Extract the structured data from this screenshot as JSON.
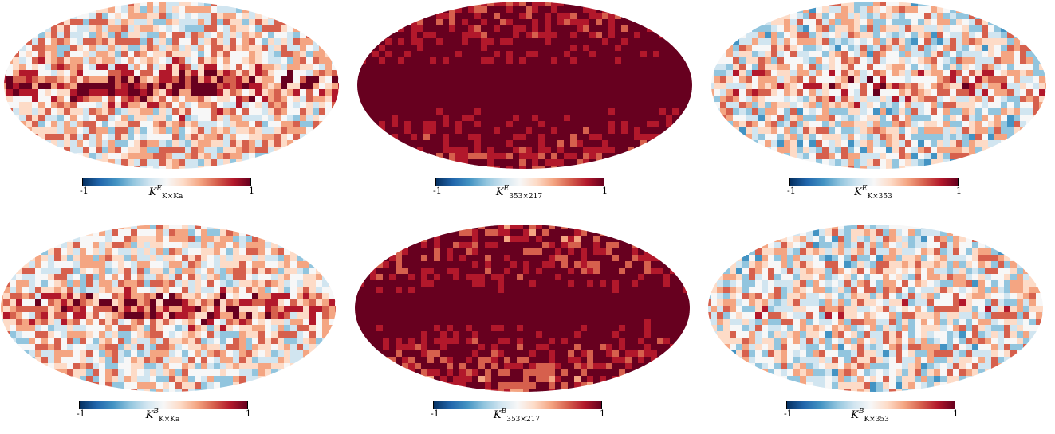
{
  "colormap": [
    "#053061",
    "#2166ac",
    "#4393c3",
    "#92c5de",
    "#d1e5f0",
    "#f7f7f7",
    "#fddbc7",
    "#f4a582",
    "#d6604d",
    "#b2182b",
    "#67001f"
  ],
  "panels": [
    {
      "id": "ke-kxka",
      "symbol": "K",
      "sup": "E",
      "sub": "K×Ka",
      "vmin": "-1",
      "vmax": "1",
      "mean": 0.15,
      "plane": 0.75,
      "noise": 0.55
    },
    {
      "id": "ke-353x217",
      "symbol": "K",
      "sup": "E",
      "sub": "353×217",
      "vmin": "-1",
      "vmax": "1",
      "mean": 0.85,
      "plane": 0.5,
      "noise": 0.35
    },
    {
      "id": "ke-kx353",
      "symbol": "K",
      "sup": "E",
      "sub": "K×353",
      "vmin": "-1",
      "vmax": "1",
      "mean": 0.05,
      "plane": 0.45,
      "noise": 0.6
    },
    {
      "id": "kb-kxka",
      "symbol": "K",
      "sup": "B",
      "sub": "K×Ka",
      "vmin": "-1",
      "vmax": "1",
      "mean": 0.1,
      "plane": 0.7,
      "noise": 0.55
    },
    {
      "id": "kb-353x217",
      "symbol": "K",
      "sup": "B",
      "sub": "353×217",
      "vmin": "-1",
      "vmax": "1",
      "mean": 0.8,
      "plane": 0.5,
      "noise": 0.4
    },
    {
      "id": "kb-kx353",
      "symbol": "K",
      "sup": "B",
      "sub": "K×353",
      "vmin": "-1",
      "vmax": "1",
      "mean": 0.05,
      "plane": 0.15,
      "noise": 0.6
    }
  ],
  "chart_data": {
    "type": "heatmap",
    "projection": "mollweide",
    "layout": "2 rows x 3 columns",
    "colorbar_range": [
      -1,
      1
    ],
    "colormap": "diverging blue-white-red",
    "maps": [
      {
        "label": "K^E_{K×Ka}"
      },
      {
        "label": "K^E_{353×217}"
      },
      {
        "label": "K^E_{K×353}"
      },
      {
        "label": "K^B_{K×Ka}"
      },
      {
        "label": "K^B_{353×217}"
      },
      {
        "label": "K^B_{K×353}"
      }
    ]
  }
}
